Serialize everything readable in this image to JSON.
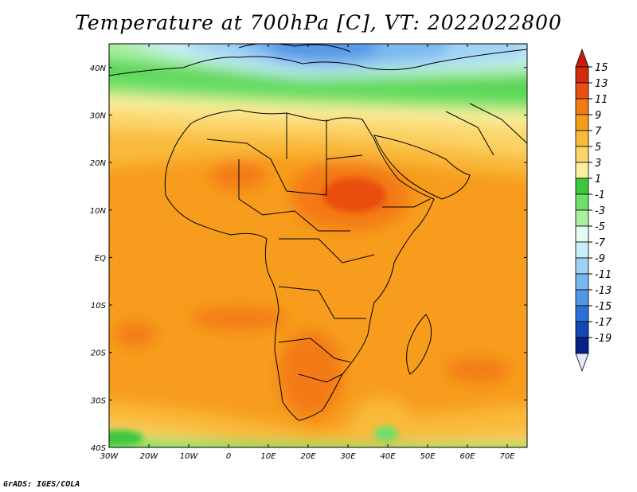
{
  "title": "Temperature at 700hPa [C], VT: 2022022800",
  "credit": "GrADS: IGES/COLA",
  "map": {
    "projection": "lat-lon",
    "lon_range": [
      -30,
      75
    ],
    "lat_range": [
      -40,
      45
    ],
    "lon_ticks": [
      {
        "value": -30,
        "label": "30W"
      },
      {
        "value": -20,
        "label": "20W"
      },
      {
        "value": -10,
        "label": "10W"
      },
      {
        "value": 0,
        "label": "0"
      },
      {
        "value": 10,
        "label": "10E"
      },
      {
        "value": 20,
        "label": "20E"
      },
      {
        "value": 30,
        "label": "30E"
      },
      {
        "value": 40,
        "label": "40E"
      },
      {
        "value": 50,
        "label": "50E"
      },
      {
        "value": 60,
        "label": "60E"
      },
      {
        "value": 70,
        "label": "70E"
      }
    ],
    "lat_ticks": [
      {
        "value": 40,
        "label": "40N"
      },
      {
        "value": 30,
        "label": "30N"
      },
      {
        "value": 20,
        "label": "20N"
      },
      {
        "value": 10,
        "label": "10N"
      },
      {
        "value": 0,
        "label": "EQ"
      },
      {
        "value": -10,
        "label": "10S"
      },
      {
        "value": -20,
        "label": "20S"
      },
      {
        "value": -30,
        "label": "30S"
      },
      {
        "value": -40,
        "label": "40S"
      }
    ]
  },
  "colorbar": {
    "levels": [
      "15",
      "13",
      "11",
      "9",
      "7",
      "5",
      "3",
      "1",
      "-1",
      "-3",
      "-5",
      "-7",
      "-9",
      "-11",
      "-13",
      "-15",
      "-17",
      "-19"
    ],
    "colors": [
      "#d02c0c",
      "#ea4e10",
      "#f37a14",
      "#f79c1c",
      "#f9ba3a",
      "#fbd56a",
      "#fcf0a0",
      "#3cc83c",
      "#6ee06a",
      "#a8f0a0",
      "#e4fbef",
      "#c8eefa",
      "#9ed2f5",
      "#78b8f0",
      "#5296e6",
      "#2c6fd8",
      "#1448b4",
      "#08208a"
    ],
    "top_color": "#cc1a08",
    "bottom_color": "#e8e8f8"
  }
}
